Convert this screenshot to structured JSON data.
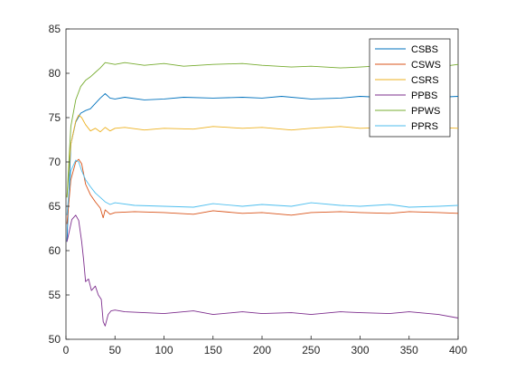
{
  "chart_data": {
    "type": "line",
    "title": "",
    "xlabel": "",
    "ylabel": "",
    "xlim": [
      0,
      400
    ],
    "ylim": [
      50,
      85
    ],
    "xticks": [
      0,
      50,
      100,
      150,
      200,
      250,
      300,
      350,
      400
    ],
    "yticks": [
      50,
      55,
      60,
      65,
      70,
      75,
      80,
      85
    ],
    "grid": false,
    "legend_position": "top-right",
    "series": [
      {
        "name": "CSBS",
        "color": "#0072BD",
        "x": [
          1,
          5,
          10,
          15,
          20,
          25,
          30,
          35,
          40,
          45,
          50,
          60,
          80,
          100,
          120,
          150,
          180,
          200,
          220,
          250,
          280,
          300,
          320,
          350,
          380,
          400
        ],
        "y": [
          61,
          72,
          74.5,
          75.5,
          75.8,
          76,
          76.6,
          77.2,
          77.7,
          77.2,
          77.1,
          77.3,
          77.0,
          77.1,
          77.3,
          77.2,
          77.3,
          77.2,
          77.4,
          77.1,
          77.2,
          77.4,
          77.3,
          77.2,
          77.3,
          77.4
        ]
      },
      {
        "name": "CSWS",
        "color": "#D95319",
        "x": [
          1,
          5,
          10,
          13,
          16,
          20,
          25,
          30,
          35,
          38,
          40,
          45,
          50,
          70,
          100,
          130,
          150,
          180,
          200,
          230,
          250,
          280,
          300,
          330,
          350,
          380,
          400
        ],
        "y": [
          63,
          68,
          70,
          70.3,
          69.8,
          67.5,
          66.3,
          65.5,
          64.8,
          63.7,
          64.6,
          64.1,
          64.3,
          64.4,
          64.3,
          64.1,
          64.5,
          64.2,
          64.3,
          64.0,
          64.3,
          64.4,
          64.3,
          64.2,
          64.4,
          64.3,
          64.2
        ]
      },
      {
        "name": "CSRS",
        "color": "#EDB120",
        "x": [
          1,
          5,
          10,
          13,
          16,
          20,
          25,
          30,
          35,
          40,
          45,
          50,
          60,
          80,
          100,
          130,
          150,
          180,
          200,
          230,
          250,
          280,
          300,
          330,
          350,
          380,
          400
        ],
        "y": [
          66,
          72,
          74.6,
          75.3,
          75.0,
          74.2,
          73.5,
          73.8,
          73.4,
          73.9,
          73.5,
          73.8,
          73.9,
          73.6,
          73.8,
          73.7,
          74.0,
          73.8,
          73.9,
          73.6,
          73.8,
          74.0,
          73.8,
          73.9,
          73.7,
          73.9,
          73.8
        ]
      },
      {
        "name": "PPBS",
        "color": "#7E2F8E",
        "x": [
          1,
          3,
          6,
          10,
          13,
          16,
          18,
          20,
          23,
          26,
          30,
          33,
          36,
          38,
          40,
          43,
          46,
          50,
          60,
          80,
          100,
          130,
          150,
          180,
          200,
          230,
          250,
          280,
          300,
          330,
          350,
          380,
          400
        ],
        "y": [
          61,
          62,
          63.5,
          64,
          63.4,
          61,
          59,
          56.5,
          56.8,
          55.5,
          56,
          55,
          54.5,
          52,
          51.5,
          52.8,
          53.2,
          53.3,
          53.1,
          53.0,
          52.9,
          53.2,
          52.8,
          53.1,
          52.9,
          53.0,
          52.8,
          53.1,
          53.0,
          52.9,
          53.1,
          52.8,
          52.4
        ]
      },
      {
        "name": "PPWS",
        "color": "#77AC30",
        "x": [
          1,
          5,
          10,
          15,
          20,
          25,
          30,
          35,
          40,
          45,
          50,
          60,
          80,
          100,
          120,
          150,
          180,
          200,
          230,
          250,
          280,
          300,
          330,
          350,
          380,
          400
        ],
        "y": [
          66,
          74,
          77,
          78.5,
          79.2,
          79.6,
          80.1,
          80.6,
          81.2,
          81.1,
          81.0,
          81.2,
          80.9,
          81.1,
          80.8,
          81.0,
          81.1,
          80.9,
          80.7,
          80.8,
          80.6,
          80.7,
          80.9,
          80.8,
          80.7,
          81.0
        ]
      },
      {
        "name": "PPRS",
        "color": "#4DBEEE",
        "x": [
          1,
          5,
          10,
          13,
          16,
          20,
          25,
          30,
          35,
          40,
          45,
          50,
          70,
          100,
          130,
          150,
          180,
          200,
          230,
          250,
          280,
          300,
          330,
          350,
          380,
          400
        ],
        "y": [
          64,
          69,
          70.2,
          70.0,
          69.0,
          68.0,
          67.2,
          66.5,
          66.0,
          65.5,
          65.2,
          65.4,
          65.1,
          65.0,
          64.9,
          65.3,
          65.0,
          65.2,
          65.0,
          65.4,
          65.1,
          65.0,
          65.2,
          64.9,
          65.0,
          65.1
        ]
      }
    ]
  }
}
